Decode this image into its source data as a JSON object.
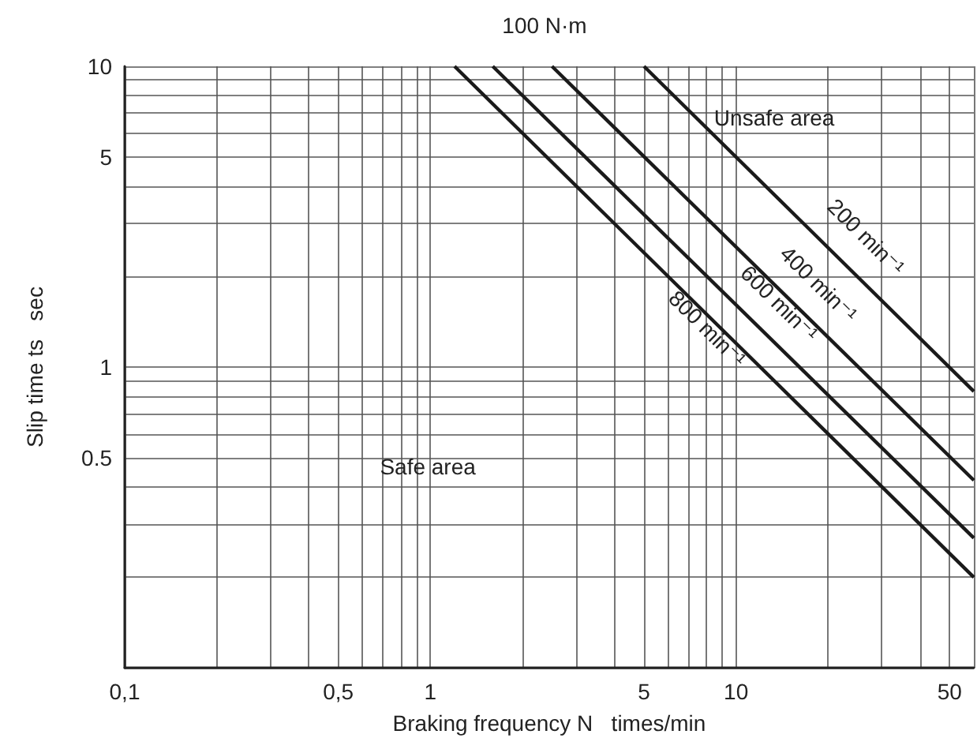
{
  "chart_data": {
    "type": "line",
    "title": "100 N·m",
    "xlabel": "Braking frequency N   times/min",
    "ylabel": "Slip time ts   sec",
    "log": "xy",
    "grid": true,
    "legend": false,
    "marker": "none",
    "line_style": "solid",
    "xlim": [
      0.1,
      60
    ],
    "ylim": [
      0.1,
      10
    ],
    "xticks": [
      {
        "value": 0.1,
        "label": "0,1"
      },
      {
        "value": 0.2,
        "label": null
      },
      {
        "value": 0.3,
        "label": null
      },
      {
        "value": 0.4,
        "label": null
      },
      {
        "value": 0.5,
        "label": "0,5"
      },
      {
        "value": 0.6,
        "label": null
      },
      {
        "value": 0.7,
        "label": null
      },
      {
        "value": 0.8,
        "label": null
      },
      {
        "value": 0.9,
        "label": null
      },
      1,
      {
        "value": 2,
        "label": null
      },
      {
        "value": 3,
        "label": null
      },
      {
        "value": 4,
        "label": null
      },
      5,
      {
        "value": 6,
        "label": null
      },
      {
        "value": 7,
        "label": null
      },
      {
        "value": 8,
        "label": null
      },
      {
        "value": 9,
        "label": null
      },
      10,
      {
        "value": 20,
        "label": null
      },
      {
        "value": 30,
        "label": null
      },
      {
        "value": 40,
        "label": null
      },
      50,
      {
        "value": 60,
        "label": null
      }
    ],
    "yticks": [
      {
        "value": 0.1,
        "label": null
      },
      {
        "value": 0.2,
        "label": null
      },
      {
        "value": 0.3,
        "label": null
      },
      {
        "value": 0.4,
        "label": null
      },
      {
        "value": 0.5,
        "label": "0.5"
      },
      {
        "value": 0.6,
        "label": null
      },
      {
        "value": 0.7,
        "label": null
      },
      {
        "value": 0.8,
        "label": null
      },
      {
        "value": 0.9,
        "label": null
      },
      1,
      {
        "value": 2,
        "label": null
      },
      {
        "value": 3,
        "label": null
      },
      {
        "value": 4,
        "label": null
      },
      5,
      {
        "value": 6,
        "label": null
      },
      {
        "value": 7,
        "label": null
      },
      {
        "value": 8,
        "label": null
      },
      {
        "value": 9,
        "label": null
      },
      10
    ],
    "series": [
      {
        "name": "200 min⁻¹",
        "color": "#1a1a1a",
        "x": [
          5,
          60
        ],
        "values": [
          10,
          0.83
        ]
      },
      {
        "name": "400 min⁻¹",
        "color": "#1a1a1a",
        "x": [
          2.5,
          60
        ],
        "values": [
          10,
          0.42
        ]
      },
      {
        "name": "600 min⁻¹",
        "color": "#1a1a1a",
        "x": [
          1.6,
          60
        ],
        "values": [
          10,
          0.27
        ]
      },
      {
        "name": "800 min⁻¹",
        "color": "#1a1a1a",
        "x": [
          1.2,
          60
        ],
        "values": [
          10,
          0.2
        ]
      }
    ],
    "annotations": [
      "Unsafe area",
      "Safe area"
    ]
  }
}
